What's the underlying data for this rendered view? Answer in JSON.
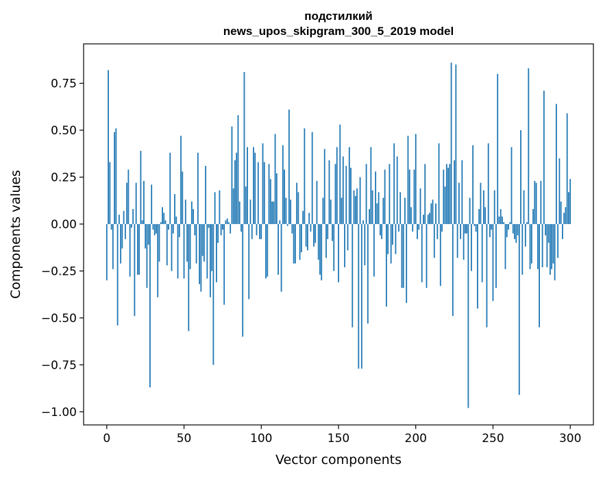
{
  "chart_data": {
    "type": "bar",
    "title_line1": "подстилкий",
    "title_line2": "news_upos_skipgram_300_5_2019 model",
    "xlabel": "Vector components",
    "ylabel": "Components values",
    "xlim": [
      -15,
      315
    ],
    "ylim": [
      -1.07,
      0.96
    ],
    "xticks": [
      0,
      50,
      100,
      150,
      200,
      250,
      300
    ],
    "yticks": [
      -1.0,
      -0.75,
      -0.5,
      -0.25,
      0.0,
      0.25,
      0.5,
      0.75
    ],
    "ytick_labels": [
      "−1.00",
      "−0.75",
      "−0.50",
      "−0.25",
      "0.00",
      "0.25",
      "0.50",
      "0.75"
    ],
    "bar_color": "#1f77b4",
    "grid": false,
    "values": [
      -0.3,
      0.82,
      0.33,
      -0.03,
      -0.24,
      0.49,
      0.51,
      -0.54,
      0.05,
      -0.21,
      -0.13,
      0.07,
      -0.08,
      0.22,
      0.29,
      -0.28,
      -0.02,
      0.08,
      -0.49,
      0.22,
      -0.27,
      -0.27,
      0.39,
      0.02,
      0.23,
      -0.13,
      -0.34,
      -0.11,
      -0.87,
      0.21,
      -0.03,
      -0.06,
      -0.05,
      -0.39,
      -0.2,
      0.01,
      0.09,
      0.06,
      0.02,
      -0.22,
      -0.03,
      0.38,
      -0.25,
      -0.05,
      0.16,
      0.04,
      -0.29,
      -0.07,
      0.47,
      0.28,
      -0.29,
      0.13,
      -0.2,
      -0.57,
      -0.24,
      0.12,
      0.08,
      -0.06,
      -0.21,
      0.38,
      -0.32,
      -0.36,
      -0.17,
      -0.2,
      0.31,
      -0.29,
      -0.02,
      -0.39,
      -0.25,
      -0.75,
      0.17,
      -0.31,
      -0.1,
      0.18,
      -0.06,
      -0.03,
      -0.43,
      0.02,
      0.03,
      0.01,
      -0.05,
      0.52,
      0.19,
      0.34,
      0.38,
      0.58,
      0.12,
      -0.04,
      -0.6,
      0.81,
      0.2,
      0.41,
      -0.4,
      0.13,
      -0.08,
      0.41,
      0.38,
      -0.06,
      0.33,
      -0.08,
      -0.08,
      0.43,
      0.33,
      -0.29,
      -0.28,
      0.32,
      0.24,
      0.12,
      0.12,
      0.48,
      0.27,
      -0.27,
      0.02,
      -0.36,
      0.42,
      0.29,
      0.14,
      -0.01,
      0.61,
      0.13,
      -0.05,
      -0.21,
      -0.21,
      0.22,
      0.17,
      -0.19,
      -0.15,
      0.07,
      0.51,
      -0.12,
      -0.14,
      0.06,
      -0.04,
      0.49,
      -0.12,
      -0.1,
      0.23,
      -0.19,
      -0.27,
      -0.3,
      0.14,
      0.4,
      -0.18,
      -0.08,
      0.34,
      0.13,
      -0.09,
      -0.25,
      0.32,
      0.41,
      -0.31,
      0.53,
      0.14,
      0.36,
      -0.23,
      0.31,
      -0.14,
      0.41,
      0.3,
      -0.55,
      0.18,
      0.15,
      0.19,
      -0.77,
      0.25,
      -0.77,
      0.02,
      -0.22,
      0.32,
      -0.53,
      0.08,
      0.41,
      0.18,
      -0.28,
      0.28,
      0.11,
      0.17,
      -0.06,
      -0.08,
      0.14,
      0.29,
      -0.44,
      -0.16,
      0.32,
      -0.21,
      -0.11,
      0.43,
      -0.16,
      0.36,
      -0.04,
      0.17,
      -0.34,
      -0.34,
      0.14,
      -0.42,
      0.47,
      0.29,
      0.09,
      -0.04,
      0.29,
      0.48,
      -0.08,
      -0.03,
      0.19,
      -0.31,
      0.05,
      0.32,
      -0.34,
      0.05,
      0.06,
      0.11,
      0.13,
      -0.18,
      0.11,
      -0.08,
      0.43,
      -0.33,
      -0.04,
      0.29,
      0.2,
      0.32,
      0.3,
      0.32,
      0.86,
      -0.49,
      0.34,
      0.85,
      -0.18,
      0.22,
      -0.08,
      0.34,
      -0.19,
      -0.05,
      -0.05,
      -0.98,
      0.14,
      -0.25,
      0.42,
      -0.01,
      -0.04,
      -0.45,
      0.08,
      0.22,
      -0.31,
      0.18,
      0.09,
      -0.55,
      0.43,
      -0.07,
      -0.03,
      -0.41,
      0.18,
      -0.34,
      0.8,
      0.04,
      0.08,
      0.04,
      0.01,
      -0.24,
      -0.07,
      -0.03,
      0.01,
      0.41,
      -0.05,
      -0.08,
      -0.1,
      -0.06,
      -0.91,
      0.5,
      -0.27,
      0.18,
      -0.12,
      0.01,
      0.83,
      -0.24,
      -0.21,
      0.08,
      0.23,
      0.22,
      -0.24,
      -0.55,
      0.23,
      -0.23,
      0.71,
      -0.06,
      -0.23,
      -0.1,
      -0.27,
      -0.24,
      -0.21,
      -0.3,
      0.64,
      -0.18,
      0.35,
      0.12,
      -0.08,
      0.06,
      0.09,
      0.59,
      0.17,
      0.24
    ]
  }
}
